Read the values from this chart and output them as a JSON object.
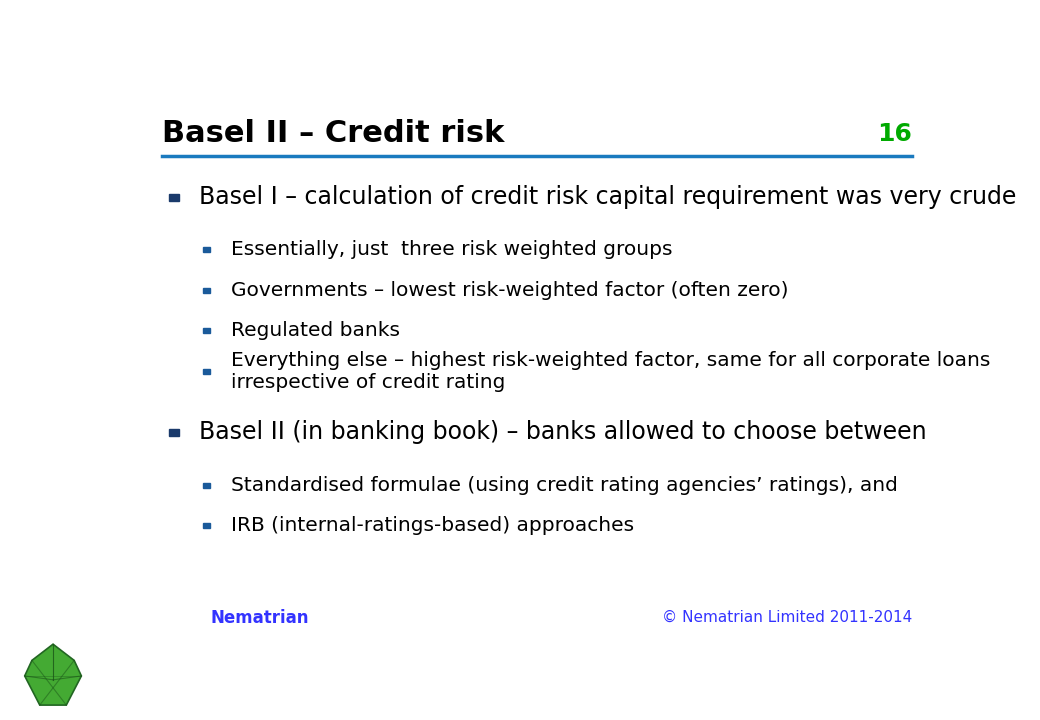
{
  "title": "Basel II – Credit risk",
  "slide_number": "16",
  "title_color": "#000000",
  "title_fontsize": 22,
  "line_color": "#1a7abf",
  "slide_number_color": "#00aa00",
  "background_color": "#ffffff",
  "footer_left": "Nematrian",
  "footer_right": "© Nematrian Limited 2011-2014",
  "footer_color": "#3333ff",
  "bullet1_color": "#1a3a6b",
  "bullet2_color": "#1a5a9a",
  "level1_fontsize": 17,
  "level2_fontsize": 14.5,
  "content": [
    {
      "level": 1,
      "text": "Basel I – calculation of credit risk capital requirement was very crude"
    },
    {
      "level": 2,
      "text": "Essentially, just  three risk weighted groups"
    },
    {
      "level": 2,
      "text": "Governments – lowest risk-weighted factor (often zero)"
    },
    {
      "level": 2,
      "text": "Regulated banks"
    },
    {
      "level": 2,
      "text": "Everything else – highest risk-weighted factor, same for all corporate loans\nirrespective of credit rating"
    },
    {
      "level": 1,
      "text": "Basel II (in banking book) – banks allowed to choose between"
    },
    {
      "level": 2,
      "text": "Standardised formulae (using credit rating agencies’ ratings), and"
    },
    {
      "level": 2,
      "text": "IRB (internal-ratings-based) approaches"
    }
  ]
}
